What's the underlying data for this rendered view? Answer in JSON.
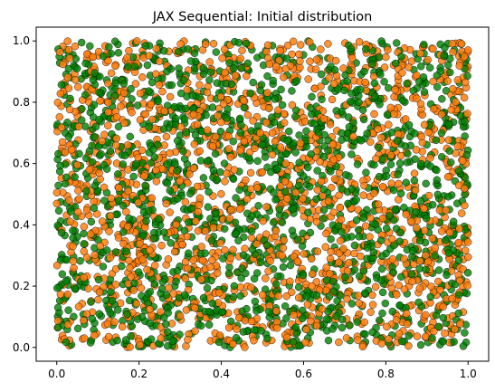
{
  "chart_data": {
    "type": "scatter",
    "title": "JAX Sequential: Initial distribution",
    "xlabel": "",
    "ylabel": "",
    "xlim": [
      -0.05,
      1.05
    ],
    "ylim": [
      -0.045,
      1.045
    ],
    "x_ticks": [
      0.0,
      0.2,
      0.4,
      0.6,
      0.8,
      1.0
    ],
    "x_tick_labels": [
      "0.0",
      "0.2",
      "0.4",
      "0.6",
      "0.8",
      "1.0"
    ],
    "y_ticks": [
      0.0,
      0.2,
      0.4,
      0.6,
      0.8,
      1.0
    ],
    "y_tick_labels": [
      "0.0",
      "0.2",
      "0.4",
      "0.6",
      "0.8",
      "1.0"
    ],
    "grid": false,
    "legend": "none",
    "distribution": "uniform random on [0,1] x [0,1]",
    "series": [
      {
        "color": "#ff7f0e",
        "edgecolor": "#000000",
        "alpha": 0.85,
        "count": 1600
      },
      {
        "color": "#008000",
        "edgecolor": "#000000",
        "alpha": 0.8,
        "count": 1600
      }
    ]
  }
}
